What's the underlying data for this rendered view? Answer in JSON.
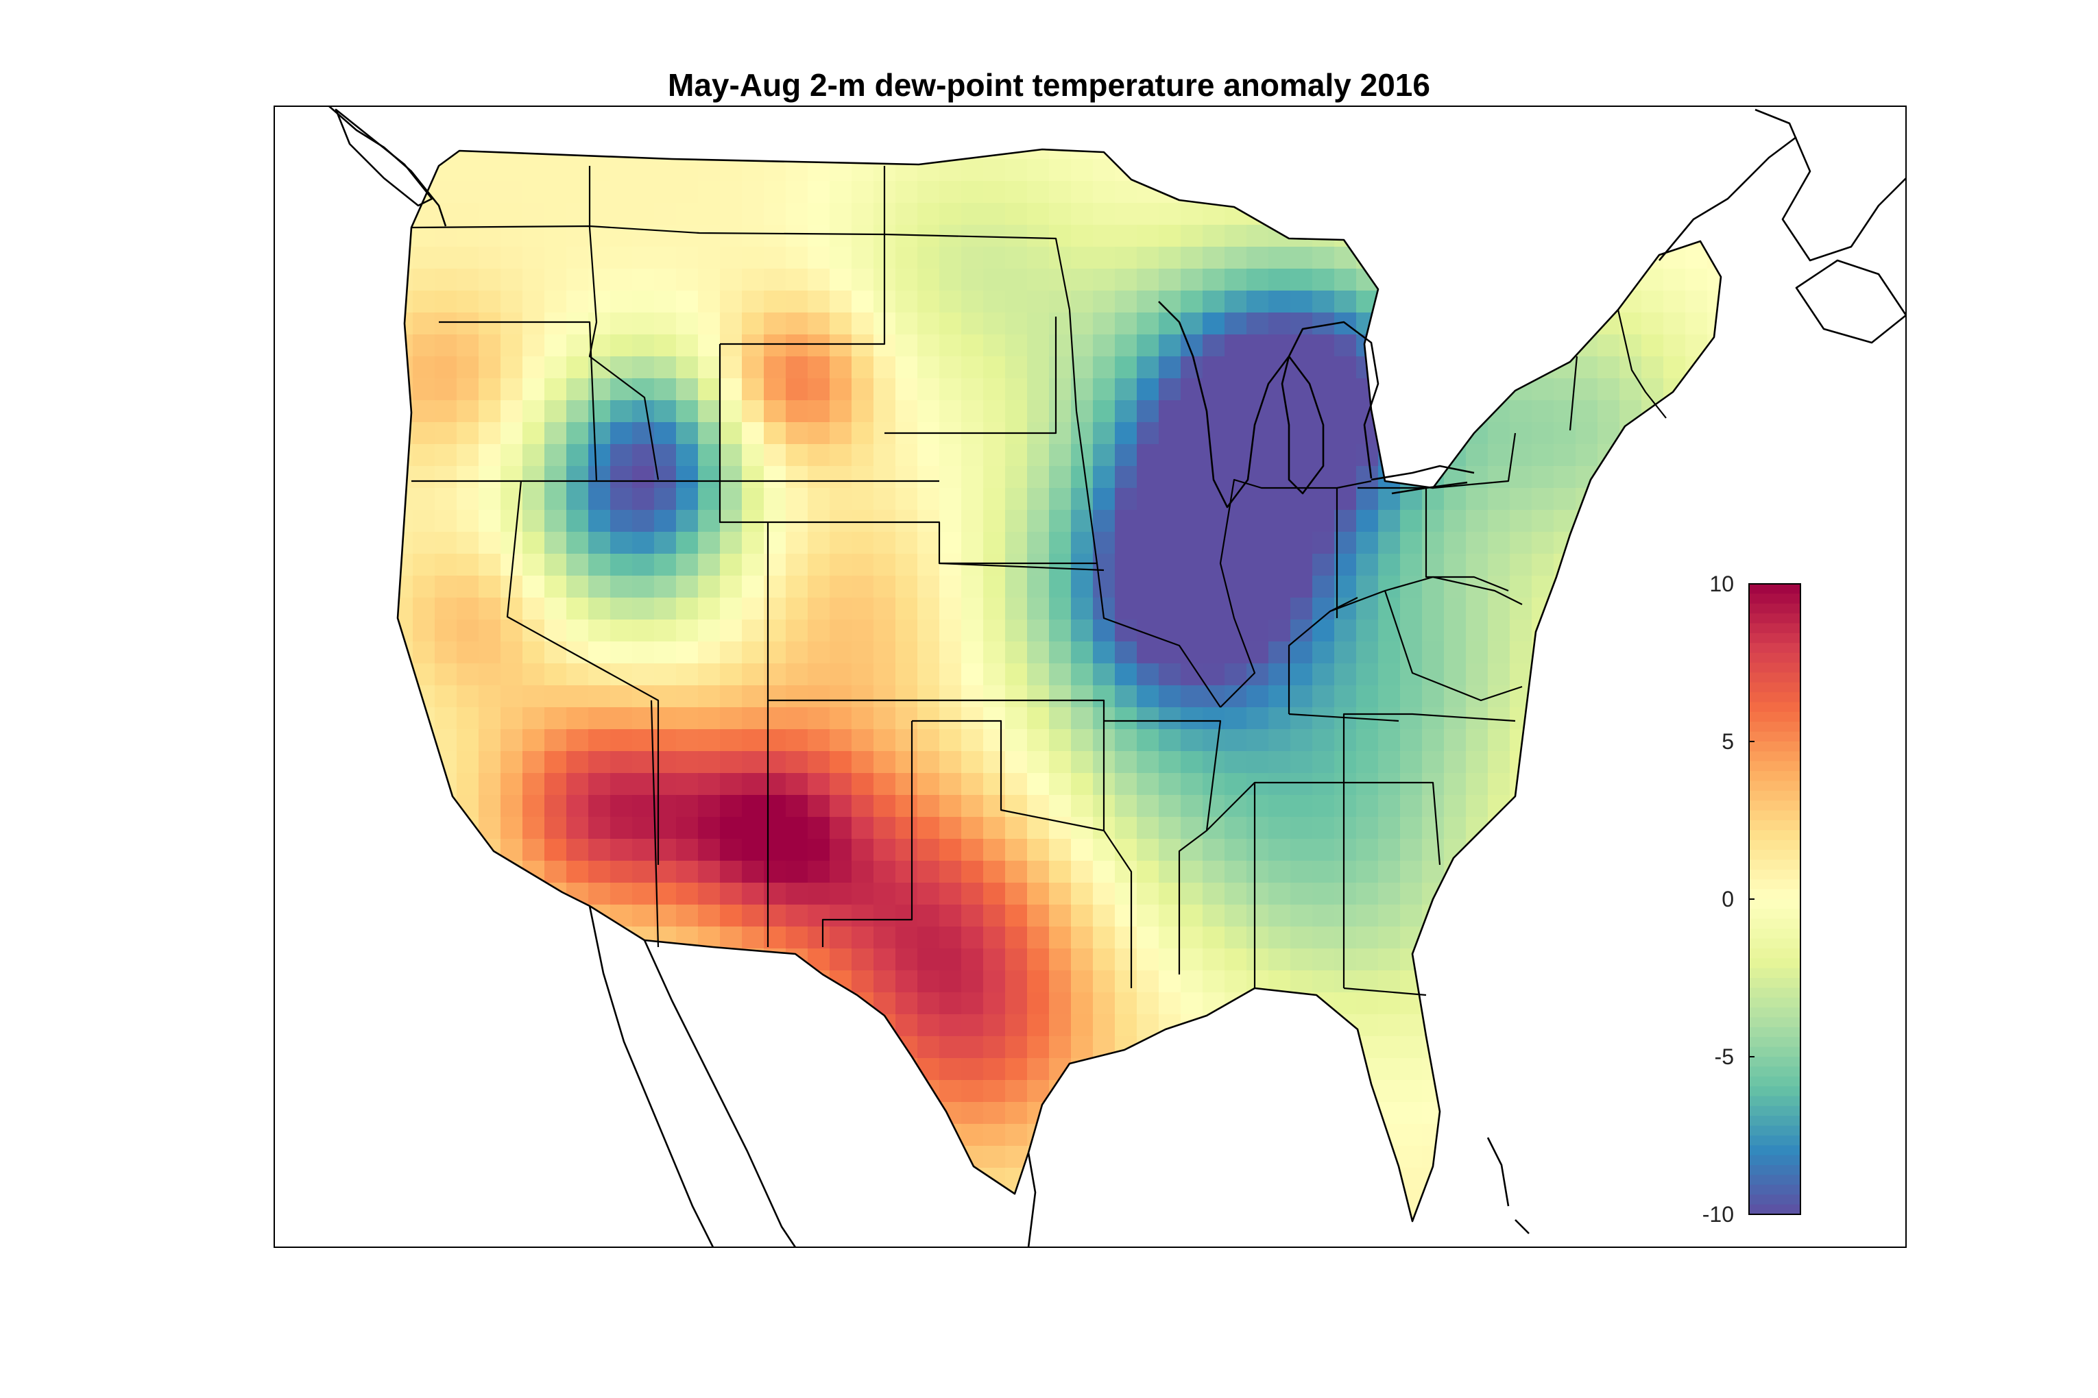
{
  "figure": {
    "title": "May-Aug 2-m dew-point temperature anomaly 2016"
  },
  "colorbar": {
    "min": -10,
    "max": 10,
    "ticks": [
      {
        "value": 10,
        "label": "10"
      },
      {
        "value": 5,
        "label": "5"
      },
      {
        "value": 0,
        "label": "0"
      },
      {
        "value": -5,
        "label": "-5"
      },
      {
        "value": -10,
        "label": "-10"
      }
    ],
    "colormap": [
      "#5e4fa2",
      "#3288bd",
      "#66c2a5",
      "#abdda4",
      "#e6f598",
      "#ffffbf",
      "#fee08b",
      "#fdae61",
      "#f46d43",
      "#d53e4f",
      "#9e0142"
    ]
  },
  "map": {
    "region": "Contiguous United States",
    "overlays": [
      "coastlines",
      "state borders"
    ],
    "field": "gridded dew-point temperature anomaly"
  }
}
